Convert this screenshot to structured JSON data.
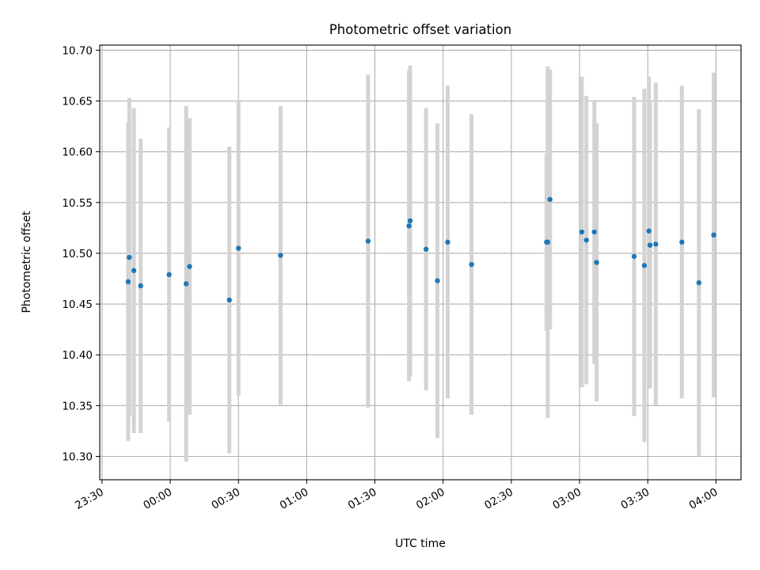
{
  "chart_data": {
    "type": "scatter",
    "title": "Photometric offset variation",
    "xlabel": "UTC time",
    "ylabel": "Photometric offset",
    "x_ticks": [
      "23:30",
      "00:00",
      "00:30",
      "01:00",
      "01:30",
      "02:00",
      "02:30",
      "03:00",
      "03:30",
      "04:00"
    ],
    "y_ticks": [
      "10.30",
      "10.35",
      "10.40",
      "10.45",
      "10.50",
      "10.55",
      "10.60",
      "10.65",
      "10.70"
    ],
    "xlim": [
      "23:29",
      "04:11"
    ],
    "ylim": [
      10.277,
      10.705
    ],
    "grid": true,
    "x_tick_rotation": 30,
    "colors": {
      "point": "#1f77b4",
      "errorbar": "#d3d3d3"
    },
    "points": [
      {
        "t": "23:41:30",
        "y": 10.472,
        "err": 0.157
      },
      {
        "t": "23:42:00",
        "y": 10.496,
        "err": 0.157
      },
      {
        "t": "23:44:00",
        "y": 10.483,
        "err": 0.16
      },
      {
        "t": "23:47:00",
        "y": 10.468,
        "err": 0.145
      },
      {
        "t": "23:59:30",
        "y": 10.479,
        "err": 0.145
      },
      {
        "t": "00:07:00",
        "y": 10.47,
        "err": 0.175
      },
      {
        "t": "00:08:30",
        "y": 10.487,
        "err": 0.146
      },
      {
        "t": "00:26:00",
        "y": 10.454,
        "err": 0.151
      },
      {
        "t": "00:30:00",
        "y": 10.505,
        "err": 0.145
      },
      {
        "t": "00:48:30",
        "y": 10.498,
        "err": 0.147
      },
      {
        "t": "01:27:00",
        "y": 10.512,
        "err": 0.164
      },
      {
        "t": "01:45:00",
        "y": 10.527,
        "err": 0.153
      },
      {
        "t": "01:45:30",
        "y": 10.532,
        "err": 0.153
      },
      {
        "t": "01:52:30",
        "y": 10.504,
        "err": 0.139
      },
      {
        "t": "01:57:30",
        "y": 10.473,
        "err": 0.155
      },
      {
        "t": "02:02:00",
        "y": 10.511,
        "err": 0.154
      },
      {
        "t": "02:12:30",
        "y": 10.489,
        "err": 0.148
      },
      {
        "t": "02:45:30",
        "y": 10.511,
        "err": 0.087
      },
      {
        "t": "02:46:00",
        "y": 10.511,
        "err": 0.173
      },
      {
        "t": "02:47:00",
        "y": 10.553,
        "err": 0.128
      },
      {
        "t": "03:01:00",
        "y": 10.521,
        "err": 0.153
      },
      {
        "t": "03:03:00",
        "y": 10.513,
        "err": 0.142
      },
      {
        "t": "03:06:30",
        "y": 10.521,
        "err": 0.13
      },
      {
        "t": "03:07:30",
        "y": 10.491,
        "err": 0.137
      },
      {
        "t": "03:24:00",
        "y": 10.497,
        "err": 0.157
      },
      {
        "t": "03:28:30",
        "y": 10.488,
        "err": 0.174
      },
      {
        "t": "03:30:30",
        "y": 10.522,
        "err": 0.152
      },
      {
        "t": "03:31:00",
        "y": 10.508,
        "err": 0.141
      },
      {
        "t": "03:33:30",
        "y": 10.509,
        "err": 0.159
      },
      {
        "t": "03:45:00",
        "y": 10.511,
        "err": 0.154
      },
      {
        "t": "03:52:30",
        "y": 10.471,
        "err": 0.171
      },
      {
        "t": "03:59:00",
        "y": 10.518,
        "err": 0.16
      }
    ]
  }
}
